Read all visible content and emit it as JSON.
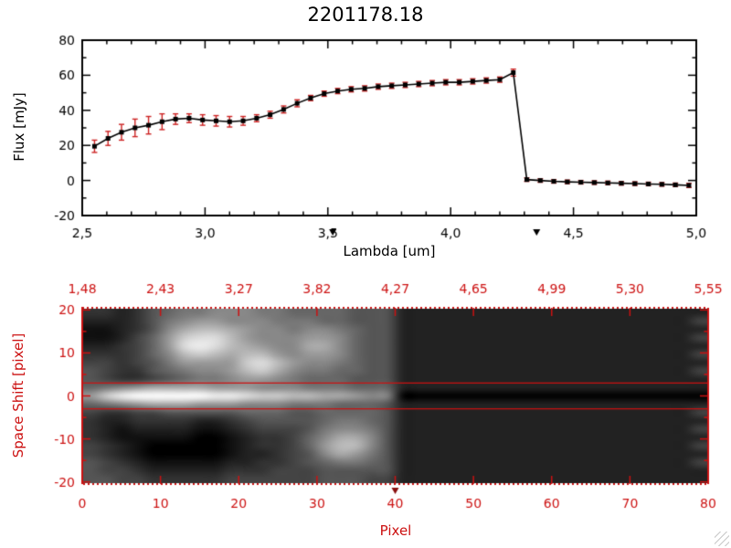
{
  "chart_data": [
    {
      "type": "line",
      "title": "2201178.18",
      "xlabel": "Lambda [um]",
      "ylabel": "Flux [mJy]",
      "xlim": [
        2.5,
        5.0
      ],
      "ylim": [
        -20,
        80
      ],
      "xticks": {
        "values": [
          2.5,
          3.0,
          3.5,
          4.0,
          4.5,
          5.0
        ],
        "labels": [
          "2,5",
          "3,0",
          "3,5",
          "4,0",
          "4,5",
          "5,0"
        ]
      },
      "yticks": {
        "values": [
          -20,
          0,
          20,
          40,
          60,
          80
        ],
        "labels": [
          "-20",
          "0",
          "20",
          "40",
          "60",
          "80"
        ]
      },
      "line_color": "#000000",
      "error_color": "#cc2222",
      "marker": "square",
      "band_markers": [
        3.52,
        4.35
      ],
      "x": [
        2.55,
        2.605,
        2.66,
        2.715,
        2.77,
        2.825,
        2.88,
        2.935,
        2.99,
        3.045,
        3.1,
        3.155,
        3.21,
        3.265,
        3.32,
        3.375,
        3.43,
        3.485,
        3.54,
        3.595,
        3.65,
        3.705,
        3.76,
        3.815,
        3.87,
        3.925,
        3.98,
        4.035,
        4.09,
        4.145,
        4.2,
        4.255,
        4.31,
        4.365,
        4.42,
        4.475,
        4.53,
        4.585,
        4.64,
        4.695,
        4.75,
        4.805,
        4.86,
        4.915,
        4.97
      ],
      "y": [
        19.5,
        24,
        27.5,
        30,
        31.5,
        33.5,
        35,
        35.5,
        34.5,
        34,
        33.5,
        34,
        35.5,
        37.5,
        40.5,
        44,
        47,
        49.5,
        51,
        52,
        52.5,
        53.5,
        54,
        54.5,
        55,
        55.5,
        56,
        56,
        56.5,
        57,
        57.5,
        61.5,
        0.5,
        0,
        -0.5,
        -0.8,
        -1,
        -1.2,
        -1.4,
        -1.6,
        -1.8,
        -2,
        -2.2,
        -2.5,
        -2.8
      ],
      "yerr": [
        3.5,
        4,
        4.5,
        5,
        5,
        4.5,
        3,
        2.5,
        3,
        3,
        3,
        2.5,
        2,
        2,
        2,
        2,
        1.5,
        1.5,
        1.5,
        1.5,
        1.5,
        1.5,
        1.5,
        1.5,
        1.5,
        1.5,
        1.5,
        1.5,
        1.5,
        1.5,
        1.5,
        2,
        1,
        1,
        1,
        1,
        1,
        1,
        1,
        1,
        1,
        1,
        1,
        1,
        1.2
      ]
    },
    {
      "type": "heatmap",
      "xlabel": "Pixel",
      "ylabel": "Space Shift [pixel]",
      "axis_color": "#cc1111",
      "xlim": [
        0,
        80
      ],
      "ylim": [
        -20.5,
        20.5
      ],
      "xticks": {
        "values": [
          0,
          10,
          20,
          30,
          40,
          50,
          60,
          70,
          80
        ],
        "labels": [
          "0",
          "10",
          "20",
          "30",
          "40",
          "50",
          "60",
          "70",
          "80"
        ]
      },
      "yticks": {
        "values": [
          -20,
          -10,
          0,
          10,
          20
        ],
        "labels": [
          "-20",
          "-10",
          "0",
          "10",
          "20"
        ]
      },
      "top_axis_labels": [
        "1,48",
        "2,43",
        "3,27",
        "3,82",
        "4,27",
        "4,65",
        "4,99",
        "5,30",
        "5,55"
      ],
      "hlines": [
        3,
        -3
      ],
      "marker_pixel": [
        40
      ],
      "grayscale_rows_hex": [
        "3323567788877666655522222222222222222222",
        "2223578998887776655522222222222222222224",
        "112358abba988788765522222222222222222222",
        "112469cddb988899865522222222222222222224",
        "223469dedba988aa865522222222222222222222",
        "333468bcbabb9899865522222222222222222224",
        "4434579999cdb988765522222222222222222222",
        "5433567889bca877665522222222222222222224",
        "5433456778998766655522222222222222222222",
        "6789aaaa99988877766622222222222222222222",
        "9cefffffeedccbbaa98800000000000000000000",
        "6789aaa999888777666522222222222222222222",
        "4334455555666556666522222222222222222224",
        "3223333223455556776522222222222222222222",
        "3212222112344457887522222222222222222224",
        "3211111001233468aa8522222222222222222222",
        "4321000001233469bb8522222222222222222224",
        "4321000001223458a97522222222222222222222",
        "5432111112233456776522222222222222222224",
        "5443222223334445555522222222222222222222",
        "5544333334444445554422222222222222222222"
      ]
    }
  ]
}
